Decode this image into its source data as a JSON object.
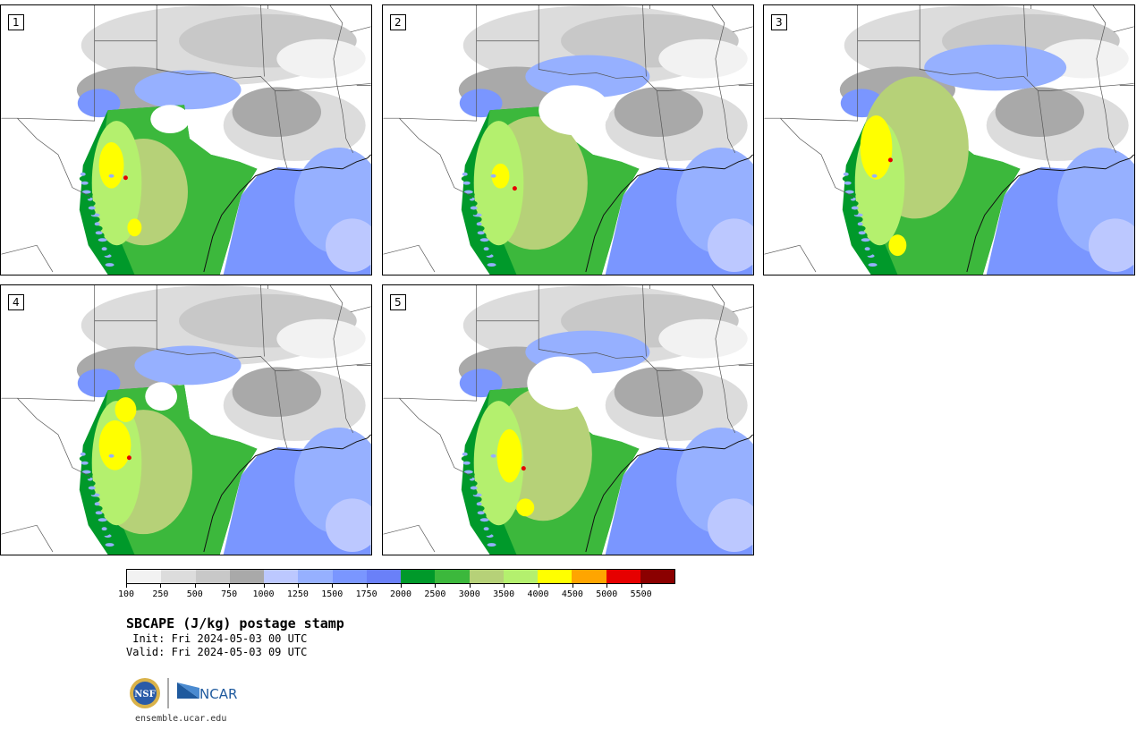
{
  "panels": [
    {
      "label": "1"
    },
    {
      "label": "2"
    },
    {
      "label": "3"
    },
    {
      "label": "4"
    },
    {
      "label": "5"
    }
  ],
  "colorbar": {
    "colors": [
      "#f2f2f2",
      "#dcdcdc",
      "#c8c8c8",
      "#a9a9a9",
      "#bcc8ff",
      "#96b0ff",
      "#7a96ff",
      "#6a80f8",
      "#00992a",
      "#3cb83c",
      "#b6d178",
      "#b4f06e",
      "#ffff00",
      "#ffa500",
      "#e60000",
      "#8b0000"
    ],
    "tick_labels": [
      "100",
      "250",
      "500",
      "750",
      "1000",
      "1250",
      "1500",
      "1750",
      "2000",
      "2500",
      "3000",
      "3500",
      "4000",
      "4500",
      "5000",
      "5500"
    ]
  },
  "title": "SBCAPE (J/kg) postage stamp",
  "init": " Init: Fri 2024-05-03 00 UTC",
  "valid": "Valid: Fri 2024-05-03 09 UTC",
  "logos": {
    "nsf": "NSF",
    "ncar": "NCAR"
  },
  "site": "ensemble.ucar.edu"
}
